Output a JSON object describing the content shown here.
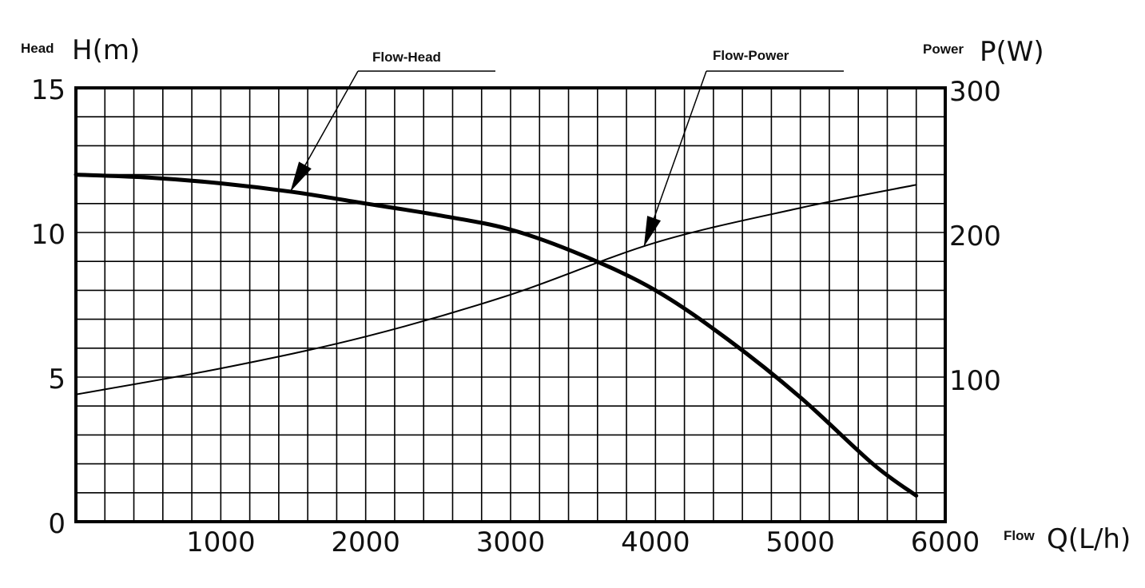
{
  "chart_data": {
    "type": "line",
    "x_axis": {
      "word": "Flow",
      "symbol": "Q(L/h)",
      "range": [
        0,
        6000
      ],
      "ticks": [
        1000,
        2000,
        3000,
        4000,
        5000,
        6000
      ],
      "tick_labels": [
        "1000",
        "2000",
        "3000",
        "4000",
        "5000",
        "6000"
      ]
    },
    "y_axis_left": {
      "word": "Head",
      "symbol": "H(m)",
      "range": [
        0,
        15
      ],
      "ticks": [
        0,
        5,
        10,
        15
      ],
      "tick_labels": [
        "0",
        "5",
        "10",
        "15"
      ]
    },
    "y_axis_right": {
      "word": "Power",
      "symbol": "P(W)",
      "range": [
        0,
        300
      ],
      "ticks": [
        100,
        200,
        300
      ],
      "tick_labels": [
        "100",
        "200",
        "300"
      ]
    },
    "grid": true,
    "grid_divisions": {
      "x": 30,
      "y": 15
    },
    "series": [
      {
        "name": "Flow-Head",
        "axis": "left",
        "stroke": "#000000",
        "x": [
          0,
          500,
          1000,
          1500,
          2000,
          2500,
          3000,
          3500,
          4000,
          4500,
          5000,
          5500,
          5800
        ],
        "y": [
          12.0,
          11.9,
          11.7,
          11.4,
          11.0,
          10.6,
          10.1,
          9.2,
          8.0,
          6.3,
          4.3,
          2.0,
          0.9
        ]
      },
      {
        "name": "Flow-Power",
        "axis": "right",
        "stroke": "#000000",
        "x": [
          0,
          1000,
          2000,
          3000,
          4000,
          5000,
          5800
        ],
        "y": [
          88,
          106,
          128,
          157,
          193,
          217,
          233
        ]
      }
    ],
    "annotations": [
      {
        "text": "Flow-Head",
        "points_to_x": 1480,
        "series": "Flow-Head"
      },
      {
        "text": "Flow-Power",
        "points_to_x": 3920,
        "series": "Flow-Power"
      }
    ]
  }
}
